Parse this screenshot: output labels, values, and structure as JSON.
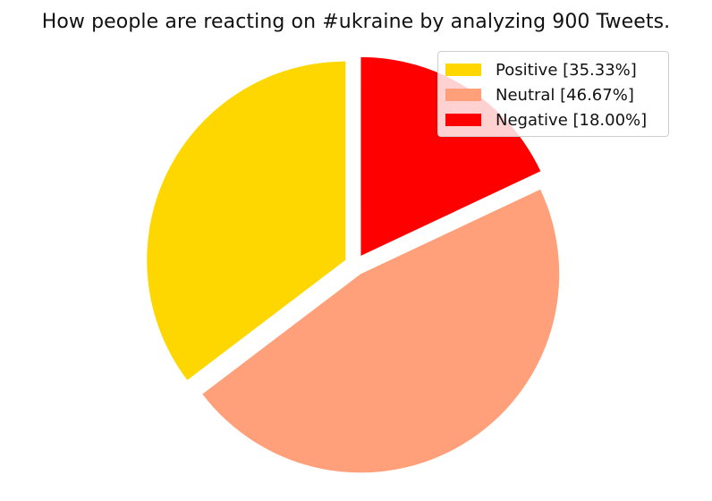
{
  "chart_data": {
    "type": "pie",
    "title": "How people are reacting on #ukraine by analyzing 900 Tweets.",
    "categories": [
      "Positive",
      "Neutral",
      "Negative"
    ],
    "values": [
      35.33,
      46.67,
      18.0
    ],
    "colors": [
      "#FFD700",
      "#FFA07A",
      "#FF0000"
    ],
    "exploded": true,
    "legend": {
      "position": "top-right",
      "labels": [
        "Positive [35.33%]",
        "Neutral [46.67%]",
        "Negative [18.00%]"
      ]
    }
  }
}
